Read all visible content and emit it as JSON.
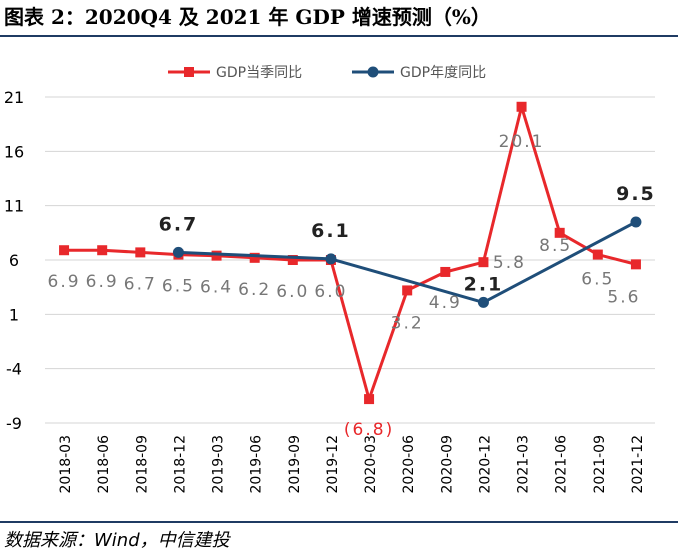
{
  "figure": {
    "title": "图表 2：2020Q4 及 2021 年 GDP 增速预测（%）",
    "source": "数据来源：Wind，中信建投"
  },
  "chart_data": {
    "type": "line",
    "categories": [
      "2018-03",
      "2018-06",
      "2018-09",
      "2018-12",
      "2019-03",
      "2019-06",
      "2019-09",
      "2019-12",
      "2020-03",
      "2020-06",
      "2020-09",
      "2020-12",
      "2021-03",
      "2021-06",
      "2021-09",
      "2021-12"
    ],
    "ylim": [
      -9,
      21
    ],
    "yticks": [
      21,
      16,
      11,
      6,
      1,
      -4,
      -9
    ],
    "grid": true,
    "legend_position": "top",
    "series": [
      {
        "name": "GDP当季同比",
        "color": "#e8282b",
        "marker": "square",
        "values": [
          6.9,
          6.9,
          6.7,
          6.5,
          6.4,
          6.2,
          6.0,
          6.0,
          -6.8,
          3.2,
          4.9,
          5.8,
          20.1,
          8.5,
          6.5,
          5.6
        ],
        "labels": [
          "6.9",
          "6.9",
          "6.7",
          "6.5",
          "6.4",
          "6.2",
          "6.0",
          "6.0",
          "(6.8)",
          "3.2",
          "4.9",
          "5.8",
          "20.1",
          "8.5",
          "6.5",
          "5.6"
        ]
      },
      {
        "name": "GDP年度同比",
        "color": "#1f4e79",
        "marker": "circle",
        "values": [
          null,
          null,
          null,
          6.7,
          null,
          null,
          null,
          6.1,
          null,
          null,
          null,
          2.1,
          null,
          null,
          null,
          9.5
        ],
        "labels": [
          null,
          null,
          null,
          "6.7",
          null,
          null,
          null,
          "6.1",
          null,
          null,
          null,
          "2.1",
          null,
          null,
          null,
          "9.5"
        ]
      }
    ]
  }
}
